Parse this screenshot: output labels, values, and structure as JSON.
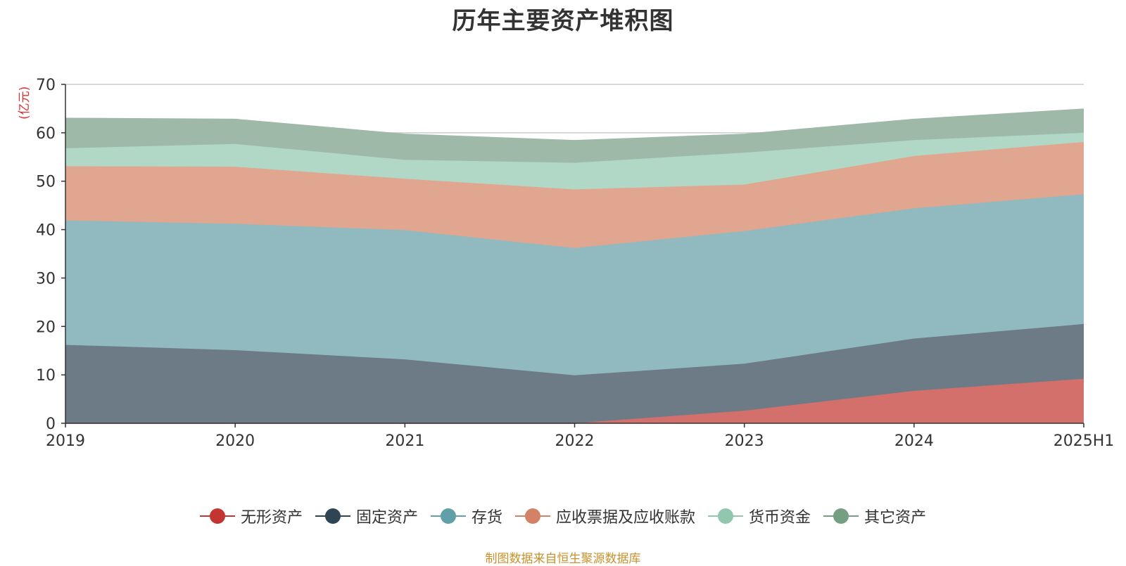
{
  "title": "历年主要资产堆积图",
  "unit_label": "(亿元)",
  "source_note": "制图数据来自恒生聚源数据库",
  "colors": {
    "title": "#333333",
    "unit": "#e03030",
    "source": "#c8912c",
    "axis": "#333333",
    "grid": "#cccccc"
  },
  "chart_data": {
    "type": "area",
    "stacked": true,
    "title": "历年主要资产堆积图",
    "xlabel": "",
    "ylabel": "(亿元)",
    "ylim": [
      0,
      70
    ],
    "yticks": [
      "0",
      "10",
      "20",
      "30",
      "40",
      "50",
      "60",
      "70"
    ],
    "categories": [
      "2019",
      "2020",
      "2021",
      "2022",
      "2023",
      "2024",
      "2025H1"
    ],
    "legend_position": "bottom",
    "series": [
      {
        "name": "无形资产",
        "color": "#c23531",
        "fill": "#d4706b",
        "values": [
          0,
          0,
          0,
          0,
          2.6,
          6.7,
          9.2
        ]
      },
      {
        "name": "固定资产",
        "color": "#2f4554",
        "fill": "#6d7b86",
        "values": [
          16.2,
          15.1,
          13.2,
          9.9,
          9.7,
          10.8,
          11.3
        ]
      },
      {
        "name": "存货",
        "color": "#61a0a8",
        "fill": "#90bac0",
        "values": [
          25.7,
          26.1,
          26.7,
          26.3,
          27.4,
          26.9,
          26.8
        ]
      },
      {
        "name": "应收票据及应收账款",
        "color": "#d48265",
        "fill": "#e0a68f",
        "values": [
          11.2,
          11.8,
          10.6,
          12.1,
          9.6,
          10.8,
          10.8
        ]
      },
      {
        "name": "货币资金",
        "color": "#91c7ae",
        "fill": "#b1d8c6",
        "values": [
          3.7,
          4.7,
          3.9,
          5.5,
          6.6,
          3.3,
          1.9
        ]
      },
      {
        "name": "其它资产",
        "color": "#749f83",
        "fill": "#9eb9a8",
        "values": [
          6.2,
          5.1,
          5.3,
          4.6,
          3.8,
          4.3,
          4.9
        ]
      }
    ]
  }
}
